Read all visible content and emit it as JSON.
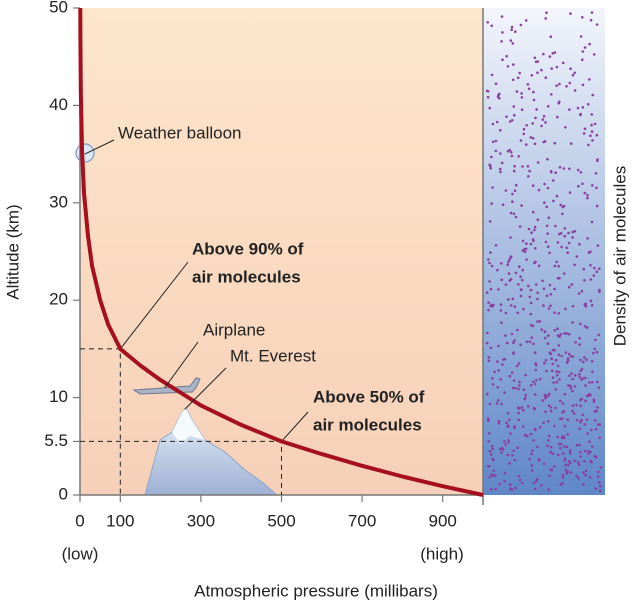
{
  "chart_data": {
    "type": "line",
    "x_label": "Atmospheric pressure (millibars)",
    "y_label": "Altitude (km)",
    "x_end_labels": [
      "(low)",
      "(high)"
    ],
    "side_label": "Density of air molecules",
    "x": [
      1000,
      900,
      800,
      700,
      600,
      500,
      400,
      300,
      200,
      150,
      100,
      70,
      50,
      30,
      20,
      10,
      5,
      2,
      1,
      0.8
    ],
    "series": [
      {
        "name": "Pressure",
        "color": "#a50f1e",
        "values": [
          0,
          0.9,
          1.9,
          3,
          4.2,
          5.5,
          7.2,
          9.2,
          11.8,
          13.3,
          15,
          17.5,
          20,
          23.5,
          26.5,
          31,
          35.5,
          41.5,
          47,
          50
        ]
      }
    ],
    "xlim": [
      0,
      1000
    ],
    "ylim": [
      0,
      50
    ],
    "xticks": [
      0,
      100,
      300,
      500,
      700,
      900
    ],
    "yticks": [
      0,
      5.5,
      10,
      20,
      30,
      40,
      50
    ],
    "reference_points": [
      {
        "x": 100,
        "y": 15,
        "label": [
          "Above 90% of",
          "air molecules"
        ]
      },
      {
        "x": 500,
        "y": 5.5,
        "label": [
          "Above 50% of",
          "air molecules"
        ]
      }
    ],
    "annotations": [
      {
        "text": "Weather balloon",
        "x": 12,
        "y": 35
      },
      {
        "text": "Airplane",
        "x": 210,
        "y": 11
      },
      {
        "text": "Mt. Everest",
        "x": 260,
        "y": 8.8
      }
    ]
  }
}
